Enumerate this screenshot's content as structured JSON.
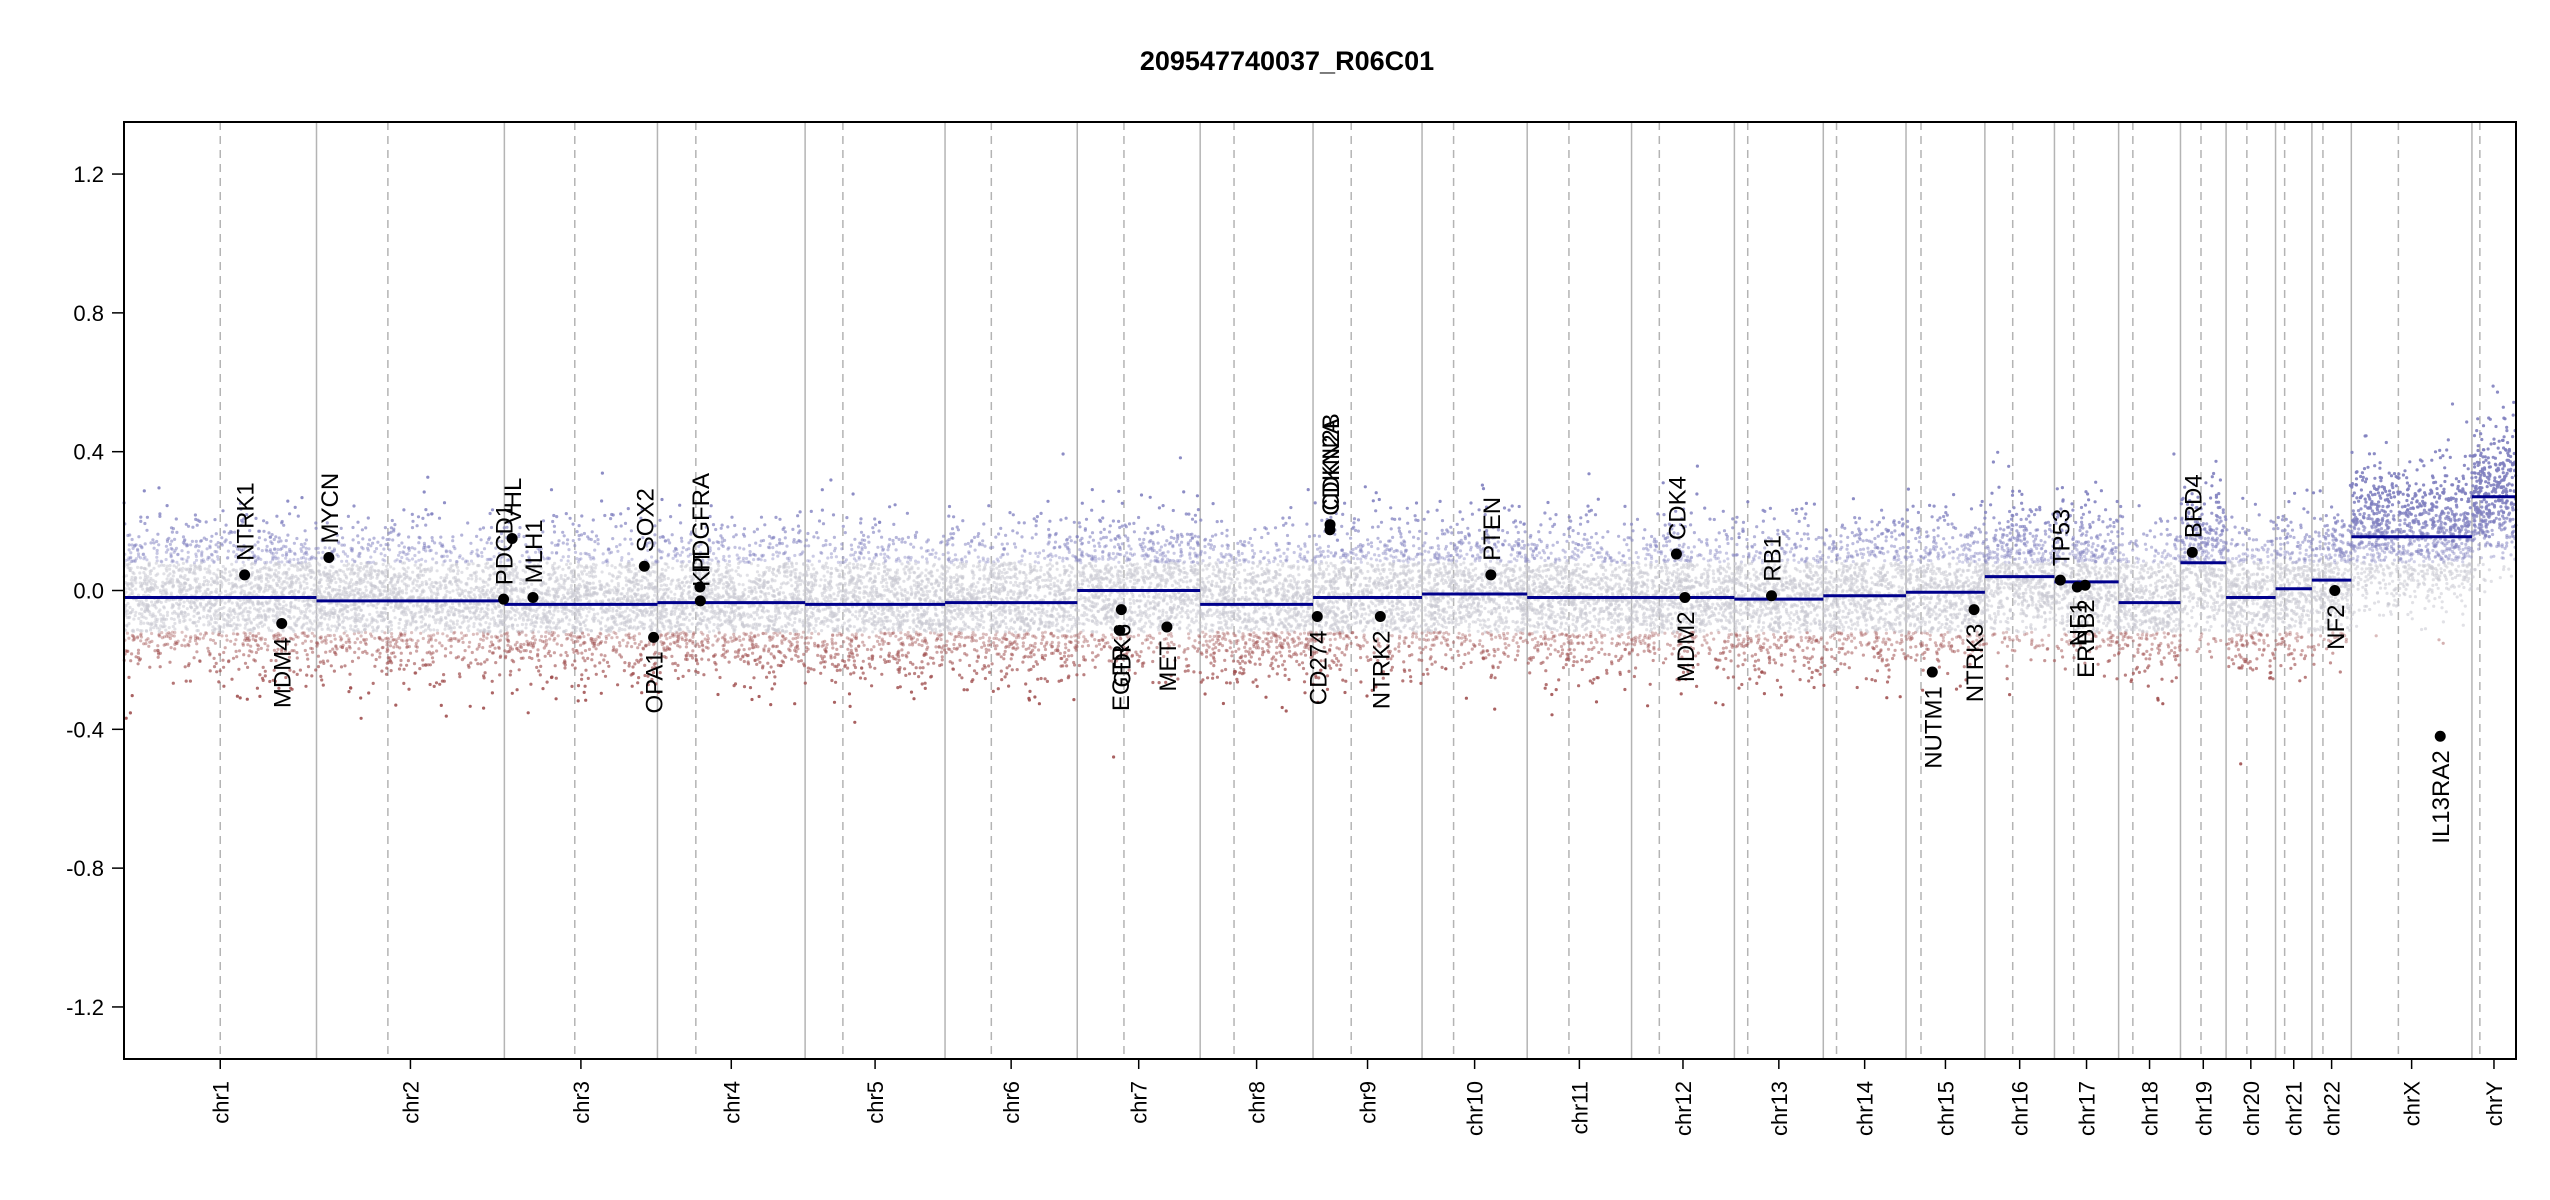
{
  "chart_data": {
    "type": "scatter",
    "title": "209547740037_R06C01",
    "xlabel": "",
    "ylabel": "",
    "ylim": [
      -1.35,
      1.35
    ],
    "yticks": [
      1.2,
      0.8,
      0.4,
      0.0,
      -0.4,
      -0.8,
      -1.2
    ],
    "ytick_labels": [
      "1.2",
      "0.8",
      "0.4",
      "0.0",
      "-0.4",
      "-0.8",
      "-1.2"
    ],
    "grid": false,
    "colors": {
      "segment": "#00008b",
      "gain_probes": "#7f7fbf",
      "loss_probes": "#a05050",
      "neutral_probes": "#c8c8d2",
      "boundary_line": "#b4b4b4",
      "centromere_line": "#b4b4b4",
      "gene_point": "#000000"
    },
    "chromosomes": [
      {
        "name": "chr1",
        "size": 249,
        "centromere": 0.5,
        "segment": -0.02
      },
      {
        "name": "chr2",
        "size": 243,
        "centromere": 0.38,
        "segment": -0.03
      },
      {
        "name": "chr3",
        "size": 198,
        "centromere": 0.46,
        "segment": -0.04
      },
      {
        "name": "chr4",
        "size": 191,
        "centromere": 0.26,
        "segment": -0.035
      },
      {
        "name": "chr5",
        "size": 181,
        "centromere": 0.27,
        "segment": -0.04
      },
      {
        "name": "chr6",
        "size": 171,
        "centromere": 0.35,
        "segment": -0.035
      },
      {
        "name": "chr7",
        "size": 159,
        "centromere": 0.38,
        "segment": 0.0
      },
      {
        "name": "chr8",
        "size": 146,
        "centromere": 0.3,
        "segment": -0.04
      },
      {
        "name": "chr9",
        "size": 141,
        "centromere": 0.35,
        "segment": -0.02
      },
      {
        "name": "chr10",
        "size": 136,
        "centromere": 0.3,
        "segment": -0.01
      },
      {
        "name": "chr11",
        "size": 135,
        "centromere": 0.4,
        "segment": -0.02
      },
      {
        "name": "chr12",
        "size": 133,
        "centromere": 0.27,
        "segment": -0.02
      },
      {
        "name": "chr13",
        "size": 115,
        "centromere": 0.15,
        "segment": -0.025
      },
      {
        "name": "chr14",
        "size": 107,
        "centromere": 0.16,
        "segment": -0.015
      },
      {
        "name": "chr15",
        "size": 102,
        "centromere": 0.19,
        "segment": -0.005
      },
      {
        "name": "chr16",
        "size": 90,
        "centromere": 0.4,
        "segment": 0.04
      },
      {
        "name": "chr17",
        "size": 83,
        "centromere": 0.3,
        "segment": 0.025
      },
      {
        "name": "chr18",
        "size": 80,
        "centromere": 0.23,
        "segment": -0.035
      },
      {
        "name": "chr19",
        "size": 59,
        "centromere": 0.45,
        "segment": 0.08
      },
      {
        "name": "chr20",
        "size": 64,
        "centromere": 0.42,
        "segment": -0.02
      },
      {
        "name": "chr21",
        "size": 47,
        "centromere": 0.25,
        "segment": 0.005
      },
      {
        "name": "chr22",
        "size": 51,
        "centromere": 0.28,
        "segment": 0.03
      },
      {
        "name": "chrX",
        "size": 156,
        "centromere": 0.39,
        "segment": 0.155
      },
      {
        "name": "chrY",
        "size": 57,
        "centromere": 0.18,
        "segment": 0.27
      }
    ],
    "genes": [
      {
        "name": "NTRK1",
        "chr": "chr1",
        "pos": 156,
        "value": 0.045
      },
      {
        "name": "MDM4",
        "chr": "chr1",
        "pos": 204,
        "value": -0.095
      },
      {
        "name": "MYCN",
        "chr": "chr2",
        "pos": 16,
        "value": 0.095
      },
      {
        "name": "VHL",
        "chr": "chr3",
        "pos": 10,
        "value": 0.15
      },
      {
        "name": "PDCD1",
        "chr": "chr2",
        "pos": 242,
        "value": -0.025
      },
      {
        "name": "MLH1",
        "chr": "chr3",
        "pos": 37,
        "value": -0.02
      },
      {
        "name": "SOX2",
        "chr": "chr3",
        "pos": 181,
        "value": 0.07
      },
      {
        "name": "OPA1",
        "chr": "chr3",
        "pos": 193,
        "value": -0.135
      },
      {
        "name": "PDGFRA",
        "chr": "chr4",
        "pos": 55,
        "value": 0.01
      },
      {
        "name": "KIT",
        "chr": "chr4",
        "pos": 55.5,
        "value": -0.03
      },
      {
        "name": "EGFR",
        "chr": "chr7",
        "pos": 55,
        "value": -0.115
      },
      {
        "name": "CDK6",
        "chr": "chr7",
        "pos": 57,
        "value": -0.055
      },
      {
        "name": "MET",
        "chr": "chr7",
        "pos": 116,
        "value": -0.105
      },
      {
        "name": "CDKN2A",
        "chr": "chr9",
        "pos": 21.9,
        "value": 0.175
      },
      {
        "name": "CDKN2B",
        "chr": "chr9",
        "pos": 22.0,
        "value": 0.19
      },
      {
        "name": "CD274",
        "chr": "chr9",
        "pos": 5.5,
        "value": -0.075
      },
      {
        "name": "NTRK2",
        "chr": "chr9",
        "pos": 87,
        "value": -0.075
      },
      {
        "name": "PTEN",
        "chr": "chr10",
        "pos": 89,
        "value": 0.045
      },
      {
        "name": "CDK4",
        "chr": "chr12",
        "pos": 58,
        "value": 0.105
      },
      {
        "name": "MDM2",
        "chr": "chr12",
        "pos": 69,
        "value": -0.02
      },
      {
        "name": "RB1",
        "chr": "chr13",
        "pos": 48,
        "value": -0.015
      },
      {
        "name": "NUTM1",
        "chr": "chr15",
        "pos": 34,
        "value": -0.235
      },
      {
        "name": "NTRK3",
        "chr": "chr15",
        "pos": 88,
        "value": -0.055
      },
      {
        "name": "TP53",
        "chr": "chr17",
        "pos": 7.6,
        "value": 0.03
      },
      {
        "name": "NF1",
        "chr": "chr17",
        "pos": 29.5,
        "value": 0.01
      },
      {
        "name": "ERBB2",
        "chr": "chr17",
        "pos": 39.7,
        "value": 0.015
      },
      {
        "name": "BRD4",
        "chr": "chr19",
        "pos": 15.3,
        "value": 0.11
      },
      {
        "name": "NF2",
        "chr": "chr22",
        "pos": 29.6,
        "value": 0.0
      },
      {
        "name": "IL13RA2",
        "chr": "chrX",
        "pos": 115,
        "value": -0.42
      }
    ]
  }
}
